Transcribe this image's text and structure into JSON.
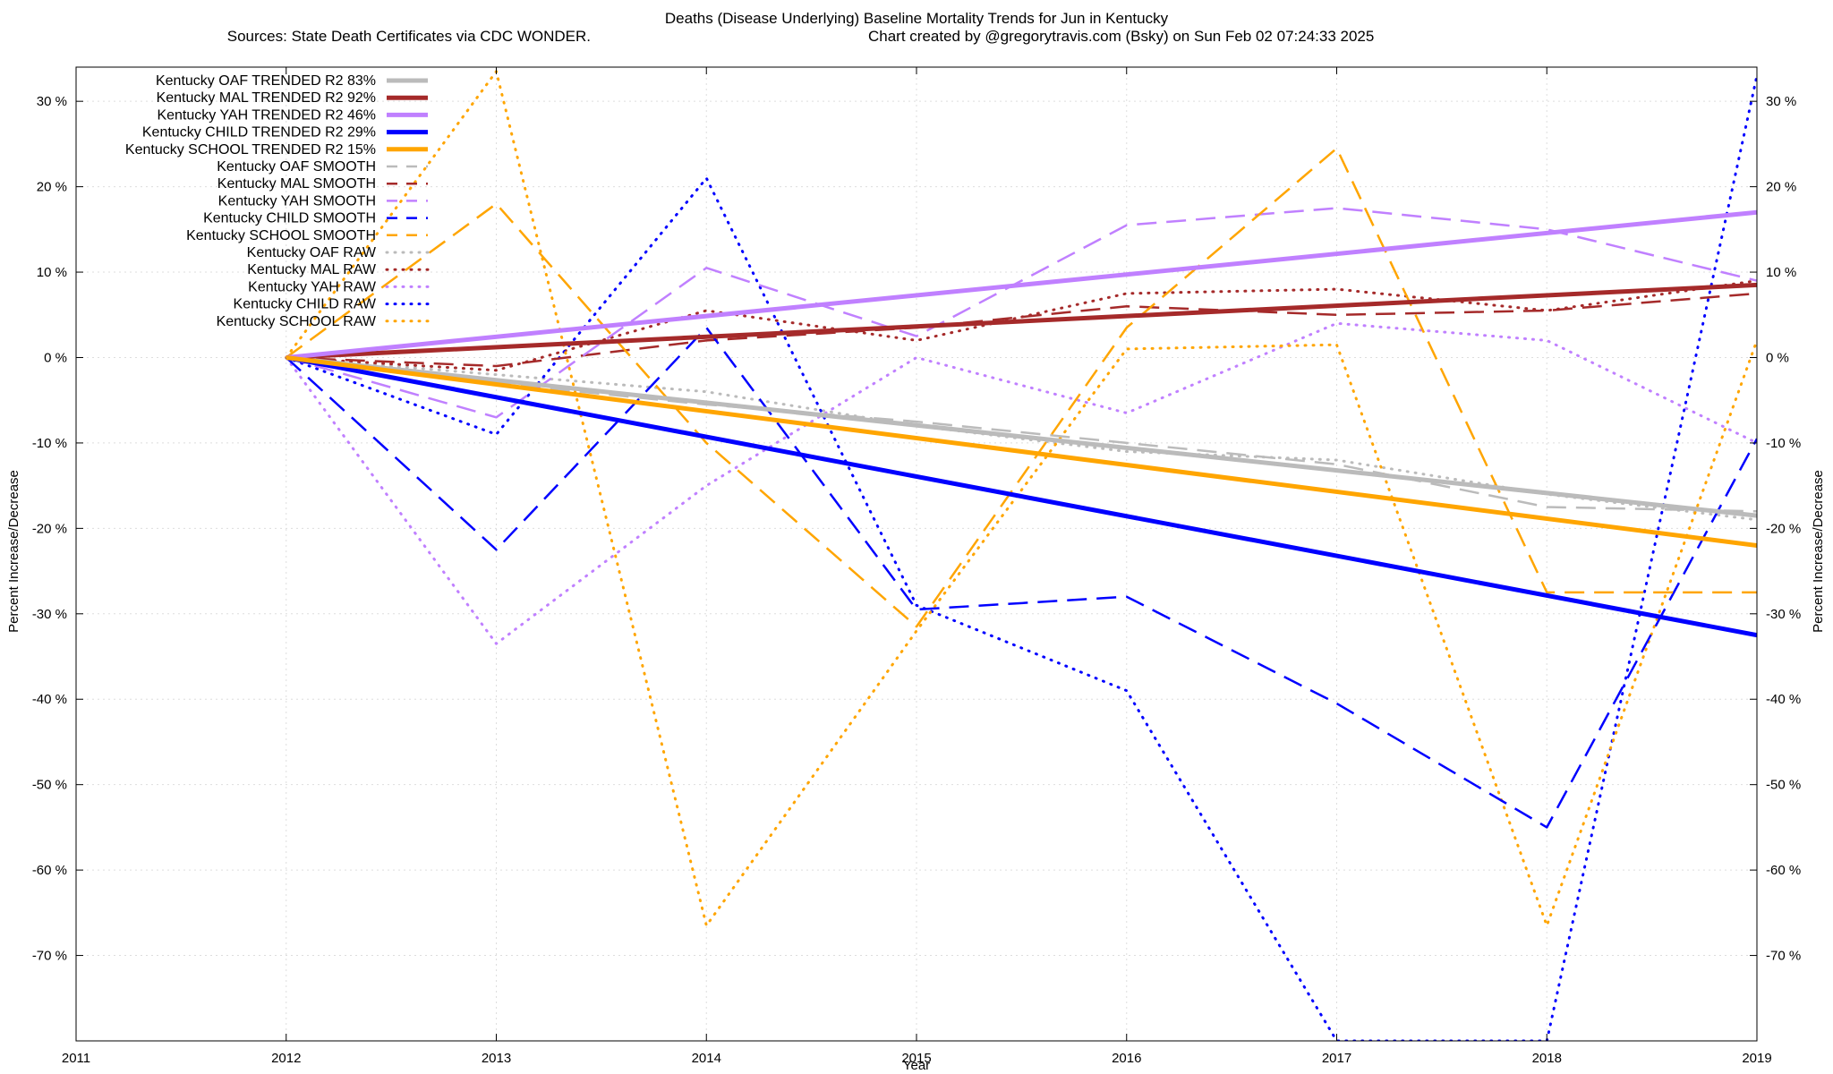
{
  "chart_data": {
    "type": "line",
    "title": "Deaths (Disease Underlying)  Baseline Mortality Trends for Jun in Kentucky",
    "subtitle_left": "Sources: State Death Certificates via CDC WONDER.",
    "subtitle_right": "Chart created by @gregorytravis.com (Bsky) on Sun Feb 02 07:24:33 2025",
    "xlabel": "Year",
    "ylabel": "Percent Increase/Decrease",
    "ylabel_right": "Percent Increase/Decrease",
    "xlim": [
      2011,
      2019
    ],
    "ylim": [
      -80,
      34
    ],
    "x_ticks": [
      "2011",
      "2012",
      "2013",
      "2014",
      "2015",
      "2016",
      "2017",
      "2018",
      "2019"
    ],
    "y_ticks": [
      {
        "value": 30,
        "label": "30 %"
      },
      {
        "value": 20,
        "label": "20 %"
      },
      {
        "value": 10,
        "label": "10 %"
      },
      {
        "value": 0,
        "label": "0 %"
      },
      {
        "value": -10,
        "label": "-10 %"
      },
      {
        "value": -20,
        "label": "-20 %"
      },
      {
        "value": -30,
        "label": "-30 %"
      },
      {
        "value": -40,
        "label": "-40 %"
      },
      {
        "value": -50,
        "label": "-50 %"
      },
      {
        "value": -60,
        "label": "-60 %"
      },
      {
        "value": -70,
        "label": "-70 %"
      }
    ],
    "grid": true,
    "legend_position": "top-left",
    "series": [
      {
        "name": "Kentucky OAF TRENDED R2  83%",
        "style": "solid",
        "color": "#bbbbbb",
        "x": [
          2012,
          2019
        ],
        "y": [
          0,
          -18.5
        ]
      },
      {
        "name": "Kentucky MAL TRENDED R2  92%",
        "style": "solid",
        "color": "#a52a2a",
        "x": [
          2012,
          2019
        ],
        "y": [
          0,
          8.5
        ]
      },
      {
        "name": "Kentucky YAH TRENDED R2  46%",
        "style": "solid",
        "color": "#c080ff",
        "x": [
          2012,
          2019
        ],
        "y": [
          0,
          17
        ]
      },
      {
        "name": "Kentucky CHILD TRENDED R2  29%",
        "style": "solid",
        "color": "#0000ff",
        "x": [
          2012,
          2019
        ],
        "y": [
          0,
          -32.5
        ]
      },
      {
        "name": "Kentucky SCHOOL TRENDED R2  15%",
        "style": "solid",
        "color": "#ffa500",
        "x": [
          2012,
          2019
        ],
        "y": [
          0,
          -22
        ]
      },
      {
        "name": "Kentucky OAF SMOOTH",
        "style": "dashed",
        "color": "#bbbbbb",
        "x": [
          2012,
          2013,
          2014,
          2015,
          2016,
          2017,
          2018,
          2019
        ],
        "y": [
          0,
          -3,
          -5.5,
          -7.5,
          -10,
          -12.5,
          -17.5,
          -18
        ]
      },
      {
        "name": "Kentucky MAL SMOOTH",
        "style": "dashed",
        "color": "#a52a2a",
        "x": [
          2012,
          2013,
          2014,
          2015,
          2016,
          2017,
          2018,
          2019
        ],
        "y": [
          0,
          -1,
          2,
          3.5,
          6,
          5,
          5.5,
          7.5
        ]
      },
      {
        "name": "Kentucky YAH SMOOTH",
        "style": "dashed",
        "color": "#c080ff",
        "x": [
          2012,
          2013,
          2014,
          2015,
          2016,
          2017,
          2018,
          2019
        ],
        "y": [
          0,
          -7,
          10.5,
          2.5,
          15.5,
          17.5,
          15,
          9
        ]
      },
      {
        "name": "Kentucky CHILD SMOOTH",
        "style": "dashed",
        "color": "#0000ff",
        "x": [
          2012,
          2013,
          2014,
          2015,
          2016,
          2017,
          2018,
          2019
        ],
        "y": [
          0,
          -22.5,
          3.5,
          -29.5,
          -28,
          -40.5,
          -55,
          -9.5
        ]
      },
      {
        "name": "Kentucky SCHOOL SMOOTH",
        "style": "dashed",
        "color": "#ffa500",
        "x": [
          2012,
          2013,
          2014,
          2015,
          2016,
          2017,
          2018,
          2019
        ],
        "y": [
          0,
          18,
          -10,
          -31.5,
          3.5,
          24.5,
          -27.5,
          -27.5
        ]
      },
      {
        "name": "Kentucky OAF RAW",
        "style": "dotted",
        "color": "#bbbbbb",
        "x": [
          2012,
          2013,
          2014,
          2015,
          2016,
          2017,
          2018,
          2019
        ],
        "y": [
          0,
          -2,
          -4,
          -8,
          -11,
          -12,
          -16,
          -19
        ]
      },
      {
        "name": "Kentucky MAL RAW",
        "style": "dotted",
        "color": "#a52a2a",
        "x": [
          2012,
          2013,
          2014,
          2015,
          2016,
          2017,
          2018,
          2019
        ],
        "y": [
          0,
          -1.5,
          5.5,
          2,
          7.5,
          8,
          5.5,
          9
        ]
      },
      {
        "name": "Kentucky YAH RAW",
        "style": "dotted",
        "color": "#c080ff",
        "x": [
          2012,
          2013,
          2014,
          2015,
          2016,
          2017,
          2018,
          2019
        ],
        "y": [
          0,
          -33.5,
          -15,
          0,
          -6.5,
          4,
          2,
          -10
        ]
      },
      {
        "name": "Kentucky CHILD RAW",
        "style": "dotted",
        "color": "#0000ff",
        "x": [
          2012,
          2013,
          2014,
          2015,
          2016,
          2017,
          2018,
          2019
        ],
        "y": [
          0,
          -9,
          21,
          -29,
          -39,
          -80,
          -80,
          33
        ]
      },
      {
        "name": "Kentucky SCHOOL RAW",
        "style": "dotted",
        "color": "#ffa500",
        "x": [
          2012,
          2013,
          2014,
          2015,
          2016,
          2017,
          2018,
          2019
        ],
        "y": [
          0,
          33.5,
          -66.5,
          -32,
          1,
          1.5,
          -66.5,
          2
        ]
      }
    ]
  }
}
